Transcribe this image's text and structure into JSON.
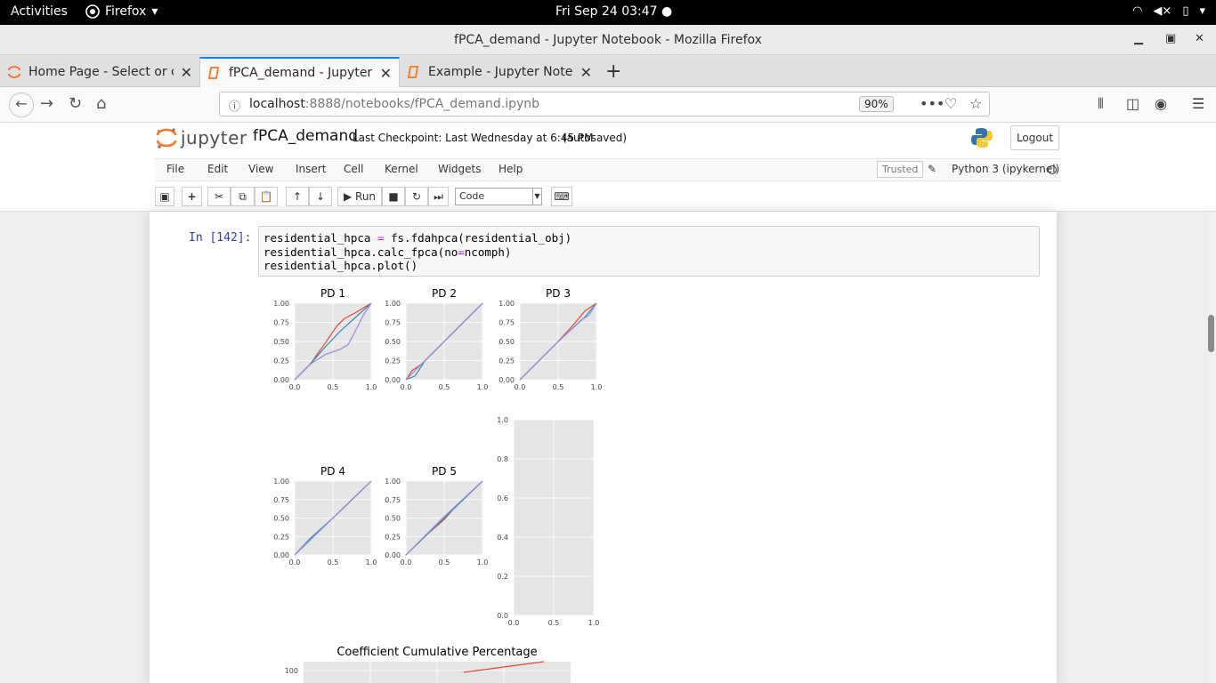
{
  "system_bar": {
    "activities": "Activities",
    "app_name": "Firefox",
    "clock": "Fri Sep 24  03:47 ●"
  },
  "window": {
    "title": "fPCA_demand - Jupyter Notebook - Mozilla Firefox"
  },
  "tabs": [
    {
      "label": "Home Page - Select or cr",
      "active": false
    },
    {
      "label": "fPCA_demand - Jupyter N",
      "active": true
    },
    {
      "label": "Example - Jupyter Notebo",
      "active": false
    }
  ],
  "nav": {
    "url_host": "localhost",
    "url_rest": ":8888/notebooks/fPCA_demand.ipynb",
    "zoom": "90%"
  },
  "jupyter": {
    "logo_text": "jupyter",
    "notebook_name": "fPCA_demand",
    "checkpoint": "Last Checkpoint: Last Wednesday at 6:45 PM",
    "autosave": "(autosaved)",
    "logout": "Logout",
    "menu": [
      "File",
      "Edit",
      "View",
      "Insert",
      "Cell",
      "Kernel",
      "Widgets",
      "Help"
    ],
    "trusted": "Trusted",
    "kernel": "Python 3 (ipykernel)",
    "run_label": "Run",
    "cell_type": "Code"
  },
  "cell": {
    "prompt": "In [142]:",
    "code_lines": [
      [
        "residential_hpca ",
        "=",
        " fs.fdahpca(residential_obj)"
      ],
      [
        "residential_hpca.calc_fpca(no",
        "=",
        "ncomph)"
      ],
      [
        "residential_hpca.plot()",
        "",
        ""
      ]
    ]
  },
  "chart_data": [
    {
      "type": "line",
      "title": "PD 1",
      "xlim": [
        0,
        1
      ],
      "ylim": [
        0,
        1
      ],
      "x_ticks": [
        "0.0",
        "0.5",
        "1.0"
      ],
      "y_ticks": [
        "0.00",
        "0.25",
        "0.50",
        "0.75",
        "1.00"
      ],
      "series": [
        {
          "color": "#e24a33",
          "points": [
            [
              0,
              0
            ],
            [
              0.2,
              0.2
            ],
            [
              0.4,
              0.48
            ],
            [
              0.55,
              0.7
            ],
            [
              0.65,
              0.8
            ],
            [
              0.8,
              0.88
            ],
            [
              1,
              1
            ]
          ]
        },
        {
          "color": "#348abd",
          "points": [
            [
              0,
              0
            ],
            [
              0.2,
              0.2
            ],
            [
              0.4,
              0.43
            ],
            [
              0.6,
              0.64
            ],
            [
              0.8,
              0.82
            ],
            [
              1,
              1
            ]
          ]
        },
        {
          "color": "#988ed5",
          "points": [
            [
              0,
              0
            ],
            [
              0.2,
              0.2
            ],
            [
              0.4,
              0.33
            ],
            [
              0.6,
              0.4
            ],
            [
              0.7,
              0.46
            ],
            [
              0.8,
              0.65
            ],
            [
              0.9,
              0.85
            ],
            [
              1,
              1
            ]
          ]
        }
      ]
    },
    {
      "type": "line",
      "title": "PD 2",
      "xlim": [
        0,
        1
      ],
      "ylim": [
        0,
        1
      ],
      "x_ticks": [
        "0.0",
        "0.5",
        "1.0"
      ],
      "y_ticks": [
        "0.00",
        "0.25",
        "0.50",
        "0.75",
        "1.00"
      ],
      "series": [
        {
          "color": "#e24a33",
          "points": [
            [
              0,
              0
            ],
            [
              0.08,
              0.12
            ],
            [
              0.2,
              0.2
            ],
            [
              0.5,
              0.5
            ],
            [
              1,
              1
            ]
          ]
        },
        {
          "color": "#348abd",
          "points": [
            [
              0,
              0
            ],
            [
              0.12,
              0.05
            ],
            [
              0.25,
              0.25
            ],
            [
              0.5,
              0.5
            ],
            [
              1,
              1
            ]
          ]
        },
        {
          "color": "#988ed5",
          "points": [
            [
              0,
              0
            ],
            [
              0.5,
              0.5
            ],
            [
              1,
              1
            ]
          ]
        }
      ]
    },
    {
      "type": "line",
      "title": "PD 3",
      "xlim": [
        0,
        1
      ],
      "ylim": [
        0,
        1
      ],
      "x_ticks": [
        "0.0",
        "0.5",
        "1.0"
      ],
      "y_ticks": [
        "0.00",
        "0.25",
        "0.50",
        "0.75",
        "1.00"
      ],
      "series": [
        {
          "color": "#e24a33",
          "points": [
            [
              0,
              0
            ],
            [
              0.5,
              0.5
            ],
            [
              0.7,
              0.72
            ],
            [
              0.85,
              0.9
            ],
            [
              1,
              1
            ]
          ]
        },
        {
          "color": "#348abd",
          "points": [
            [
              0,
              0
            ],
            [
              0.5,
              0.5
            ],
            [
              0.85,
              0.82
            ],
            [
              1,
              1
            ]
          ]
        },
        {
          "color": "#988ed5",
          "points": [
            [
              0,
              0
            ],
            [
              0.5,
              0.5
            ],
            [
              0.8,
              0.78
            ],
            [
              0.9,
              0.84
            ],
            [
              1,
              1
            ]
          ]
        }
      ]
    },
    {
      "type": "line",
      "title": "PD 4",
      "xlim": [
        0,
        1
      ],
      "ylim": [
        0,
        1
      ],
      "x_ticks": [
        "0.0",
        "0.5",
        "1.0"
      ],
      "y_ticks": [
        "0.00",
        "0.25",
        "0.50",
        "0.75",
        "1.00"
      ],
      "series": [
        {
          "color": "#e24a33",
          "points": [
            [
              0,
              0
            ],
            [
              0.2,
              0.2
            ],
            [
              0.5,
              0.5
            ],
            [
              1,
              1
            ]
          ]
        },
        {
          "color": "#348abd",
          "points": [
            [
              0,
              0
            ],
            [
              0.2,
              0.22
            ],
            [
              0.5,
              0.5
            ],
            [
              1,
              1
            ]
          ]
        },
        {
          "color": "#988ed5",
          "points": [
            [
              0,
              0
            ],
            [
              0.25,
              0.25
            ],
            [
              0.5,
              0.5
            ],
            [
              1,
              1
            ]
          ]
        }
      ]
    },
    {
      "type": "line",
      "title": "PD 5",
      "xlim": [
        0,
        1
      ],
      "ylim": [
        0,
        1
      ],
      "x_ticks": [
        "0.0",
        "0.5",
        "1.0"
      ],
      "y_ticks": [
        "0.00",
        "0.25",
        "0.50",
        "0.75",
        "1.00"
      ],
      "series": [
        {
          "color": "#e24a33",
          "points": [
            [
              0,
              0
            ],
            [
              0.3,
              0.3
            ],
            [
              0.5,
              0.48
            ],
            [
              0.6,
              0.6
            ],
            [
              1,
              1
            ]
          ]
        },
        {
          "color": "#348abd",
          "points": [
            [
              0,
              0
            ],
            [
              0.5,
              0.5
            ],
            [
              1,
              1
            ]
          ]
        },
        {
          "color": "#988ed5",
          "points": [
            [
              0,
              0
            ],
            [
              0.5,
              0.52
            ],
            [
              1,
              1
            ]
          ]
        }
      ]
    },
    {
      "type": "line",
      "title": "",
      "xlim": [
        0,
        1
      ],
      "ylim": [
        0,
        1
      ],
      "x_ticks": [
        "0.0",
        "0.5",
        "1.0"
      ],
      "y_ticks": [
        "0.0",
        "0.2",
        "0.4",
        "0.6",
        "0.8",
        "1.0"
      ],
      "series": []
    },
    {
      "type": "line",
      "title": "Coefficient Cumulative Percentage",
      "y_ticks": [
        "100"
      ],
      "series": [
        {
          "color": "#e24a33",
          "points": [
            [
              0.6,
              96
            ],
            [
              0.9,
              100
            ]
          ]
        }
      ]
    }
  ]
}
